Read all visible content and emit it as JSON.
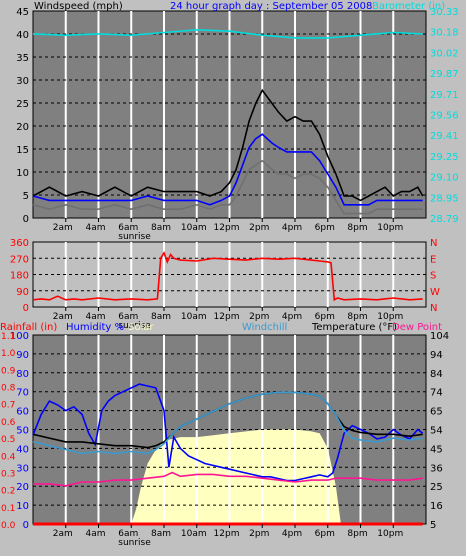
{
  "chart_data": [
    {
      "type": "line",
      "title": "24 hour graph day : September 05 2008",
      "left_label": "Windspeed (mph)",
      "right_label": "Barometer (in)",
      "left_ticks": [
        "0",
        "5",
        "10",
        "15",
        "20",
        "25",
        "30",
        "35",
        "40",
        "45"
      ],
      "right_ticks": [
        "28.79",
        "28.95",
        "29.10",
        "29.25",
        "29.41",
        "29.56",
        "29.71",
        "29.87",
        "30.02",
        "30.18",
        "30.33"
      ],
      "ylim": [
        0,
        47
      ],
      "ylim_right": [
        28.79,
        30.33
      ],
      "xlim": [
        0,
        24
      ],
      "grid": true,
      "colors": {
        "gust": "#000000",
        "average": "#0000ff",
        "low": "#707070",
        "barometer": "#00dcdc"
      },
      "series": [
        {
          "name": "gust",
          "color": "#000000",
          "x": [
            0,
            1,
            2,
            3,
            4,
            5,
            6,
            7,
            8,
            9,
            10,
            10.8,
            11.5,
            12,
            12.4,
            12.8,
            13.2,
            13.6,
            14,
            14.6,
            15,
            15.5,
            16,
            16.5,
            17,
            17.5,
            18,
            18.5,
            19,
            19.5,
            20,
            20.5,
            21,
            21.5,
            22,
            22.5,
            23,
            23.5,
            23.8
          ],
          "y": [
            5,
            7,
            5,
            6,
            5,
            7,
            5,
            7,
            6,
            6,
            6,
            5,
            6,
            8,
            11,
            16,
            22,
            26,
            29,
            26,
            24,
            22,
            23,
            22,
            22,
            19,
            14,
            10,
            5,
            5,
            4,
            5,
            6,
            7,
            5,
            6,
            6,
            7,
            5
          ]
        },
        {
          "name": "average",
          "color": "#0000ff",
          "x": [
            0,
            1,
            2,
            3,
            4,
            5,
            6,
            7,
            8,
            9,
            10,
            10.8,
            11.5,
            12,
            12.4,
            12.8,
            13.2,
            13.6,
            14,
            14.6,
            15,
            15.5,
            16,
            16.5,
            17,
            17.5,
            18,
            18.5,
            19,
            19.5,
            20,
            20.5,
            21,
            21.5,
            22,
            22.5,
            23,
            23.5,
            23.8
          ],
          "y": [
            5,
            4,
            4,
            4,
            4,
            4,
            4,
            5,
            4,
            4,
            4,
            3,
            4,
            5,
            8,
            12,
            16,
            18,
            19,
            17,
            16,
            15,
            15,
            15,
            15,
            13,
            10,
            7,
            3,
            3,
            3,
            3,
            4,
            4,
            4,
            4,
            4,
            4,
            4
          ]
        },
        {
          "name": "low",
          "color": "#707070",
          "x": [
            0,
            1,
            2,
            3,
            4,
            5,
            6,
            7,
            8,
            9,
            10,
            10.8,
            11.5,
            12,
            12.4,
            12.8,
            13.2,
            13.6,
            14,
            14.6,
            15,
            15.5,
            16,
            16.5,
            17,
            17.5,
            18,
            18.5,
            19,
            19.5,
            20,
            20.5,
            21,
            21.5,
            22,
            22.5,
            23,
            23.5,
            23.8
          ],
          "y": [
            3,
            2,
            3,
            2,
            2,
            3,
            2,
            3,
            2,
            2,
            3,
            2,
            3,
            3,
            5,
            8,
            11,
            12,
            13,
            11,
            10,
            10,
            9,
            10,
            10,
            9,
            7,
            4,
            1,
            1,
            1,
            1,
            2,
            2,
            2,
            2,
            2,
            2,
            2
          ]
        },
        {
          "name": "barometer",
          "color": "#00dcdc",
          "axis": "right",
          "x": [
            0,
            2,
            4,
            6,
            8,
            10,
            12,
            14,
            16,
            18,
            20,
            22,
            23.8
          ],
          "y": [
            30.16,
            30.15,
            30.16,
            30.15,
            30.17,
            30.19,
            30.18,
            30.15,
            30.13,
            30.13,
            30.15,
            30.17,
            30.16
          ]
        }
      ],
      "x_ticks": [
        "2am",
        "4am",
        "6am",
        "8am",
        "10am",
        "12pm",
        "2pm",
        "4pm",
        "6pm",
        "8pm",
        "10pm"
      ],
      "sunrise_label": "sunrise"
    },
    {
      "type": "line",
      "title": "",
      "left_ticks": [
        "0",
        "90",
        "180",
        "270",
        "360"
      ],
      "right_ticks": [
        "N",
        "W",
        "S",
        "E",
        "N"
      ],
      "ylim": [
        0,
        360
      ],
      "xlim": [
        0,
        24
      ],
      "grid": true,
      "series": [
        {
          "name": "wind_direction",
          "color": "#ff0000",
          "x": [
            0,
            0.5,
            1,
            1.5,
            2,
            2.5,
            3,
            4,
            5,
            6,
            7,
            7.6,
            7.8,
            8,
            8.2,
            8.4,
            8.6,
            9,
            10,
            11,
            12,
            13,
            14,
            15,
            16,
            17,
            17.5,
            18,
            18.2,
            18.4,
            18.6,
            19,
            20,
            21,
            22,
            23,
            23.8
          ],
          "y": [
            40,
            45,
            40,
            60,
            40,
            45,
            40,
            50,
            40,
            45,
            40,
            45,
            270,
            300,
            250,
            290,
            270,
            260,
            255,
            270,
            265,
            260,
            270,
            265,
            270,
            260,
            255,
            250,
            245,
            40,
            50,
            40,
            45,
            40,
            50,
            40,
            45
          ]
        }
      ],
      "x_ticks": [
        "2am",
        "4am",
        "6am",
        "8am",
        "10am",
        "12pm",
        "2pm",
        "4pm",
        "6pm",
        "8pm",
        "10pm"
      ],
      "sunrise_label": "sunrise"
    },
    {
      "type": "line",
      "title": "",
      "legend": [
        "Rainfall (in)",
        "Humidity %",
        "Solar",
        "Windchill",
        "Temperature (°F)",
        "Dew Point"
      ],
      "left_ticks_humidity": [
        "0",
        "10",
        "20",
        "30",
        "40",
        "50",
        "60",
        "70",
        "80",
        "90",
        "100"
      ],
      "left_ticks_rain": [
        "0.0",
        "0.1",
        "0.2",
        "0.3",
        "0.4",
        "0.5",
        "0.6",
        "0.7",
        "0.8",
        "0.9",
        "1.0",
        "1.1"
      ],
      "right_ticks": [
        "5",
        "16",
        "25",
        "36",
        "45",
        "54",
        "65",
        "74",
        "84",
        "94",
        "104"
      ],
      "ylim": [
        5,
        104
      ],
      "xlim": [
        0,
        24
      ],
      "grid": true,
      "series": [
        {
          "name": "humidity",
          "color": "#0000ff",
          "x": [
            0,
            0.5,
            1,
            1.5,
            2,
            2.5,
            3,
            3.4,
            3.8,
            4.2,
            4.6,
            5,
            5.5,
            6,
            6.5,
            7,
            7.5,
            8,
            8.3,
            8.6,
            9,
            9.5,
            10,
            10.5,
            11,
            11.5,
            12,
            12.5,
            13,
            13.5,
            14,
            14.5,
            15,
            15.5,
            16,
            16.5,
            17,
            17.5,
            18,
            18.3,
            18.6,
            19,
            19.5,
            20,
            20.5,
            21,
            21.5,
            22,
            22.5,
            23,
            23.5,
            23.8
          ],
          "y": [
            47,
            58,
            65,
            63,
            60,
            62,
            58,
            48,
            42,
            60,
            65,
            68,
            70,
            72,
            74,
            73,
            72,
            60,
            30,
            46,
            40,
            36,
            34,
            32,
            31,
            30,
            29,
            28,
            27,
            26,
            25,
            25,
            24,
            23,
            23,
            24,
            25,
            26,
            25,
            27,
            35,
            48,
            52,
            50,
            48,
            45,
            46,
            50,
            47,
            45,
            50,
            48
          ]
        },
        {
          "name": "temperature",
          "color": "#000000",
          "x": [
            0,
            1,
            2,
            3,
            4,
            5,
            6,
            7,
            7.5,
            8,
            8.5,
            9,
            10,
            11,
            12,
            13,
            14,
            15,
            16,
            17,
            17.5,
            18,
            18.5,
            19,
            19.5,
            20,
            21,
            22,
            23,
            23.8
          ],
          "y": [
            52,
            50,
            48,
            48,
            47,
            46,
            46,
            45,
            46,
            48,
            52,
            56,
            60,
            64,
            68,
            71,
            73,
            74,
            74,
            73,
            72,
            68,
            62,
            56,
            54,
            53,
            52,
            52,
            51,
            52
          ]
        },
        {
          "name": "windchill",
          "color": "#3a9ad0",
          "x": [
            0,
            1,
            2,
            3,
            4,
            5,
            6,
            7,
            7.5,
            8,
            8.5,
            9,
            10,
            11,
            12,
            13,
            14,
            15,
            16,
            17,
            17.5,
            18,
            18.5,
            19,
            19.5,
            20,
            21,
            22,
            23,
            23.8
          ],
          "y": [
            48,
            46,
            44,
            42,
            43,
            42,
            43,
            42,
            44,
            47,
            52,
            56,
            60,
            64,
            68,
            71,
            73,
            74,
            74,
            73,
            72,
            68,
            62,
            54,
            50,
            49,
            48,
            50,
            49,
            50
          ]
        },
        {
          "name": "dew_point",
          "color": "#ff1493",
          "x": [
            0,
            1,
            2,
            3,
            4,
            5,
            6,
            7,
            8,
            8.5,
            9,
            10,
            11,
            12,
            13,
            14,
            15,
            16,
            17,
            18,
            18.5,
            19,
            20,
            21,
            22,
            23,
            23.8
          ],
          "y": [
            26,
            26,
            25,
            27,
            27,
            28,
            28,
            29,
            30,
            32,
            30,
            31,
            31,
            30,
            30,
            29,
            28,
            27,
            28,
            28,
            29,
            29,
            29,
            28,
            28,
            28,
            29
          ]
        },
        {
          "name": "solar",
          "color": "#ffffc0",
          "x": [
            6,
            6.3,
            6.6,
            7,
            7.4,
            7.8,
            8,
            8.5,
            9,
            10,
            11,
            12,
            13,
            14,
            15,
            16,
            17,
            17.5,
            18,
            18.5,
            18.8
          ],
          "y": [
            0,
            8,
            20,
            32,
            38,
            42,
            44,
            45,
            46,
            46,
            47,
            48,
            49,
            50,
            50,
            50,
            49,
            48,
            40,
            20,
            0
          ]
        },
        {
          "name": "rainfall",
          "color": "#ff0000",
          "x": [
            0,
            23.8
          ],
          "y": [
            0,
            0
          ]
        }
      ],
      "x_ticks": [
        "2am",
        "4am",
        "6am",
        "8am",
        "10am",
        "12pm",
        "2pm",
        "4pm",
        "6pm",
        "8pm",
        "10pm"
      ],
      "sunrise_label": "sunrise"
    }
  ]
}
